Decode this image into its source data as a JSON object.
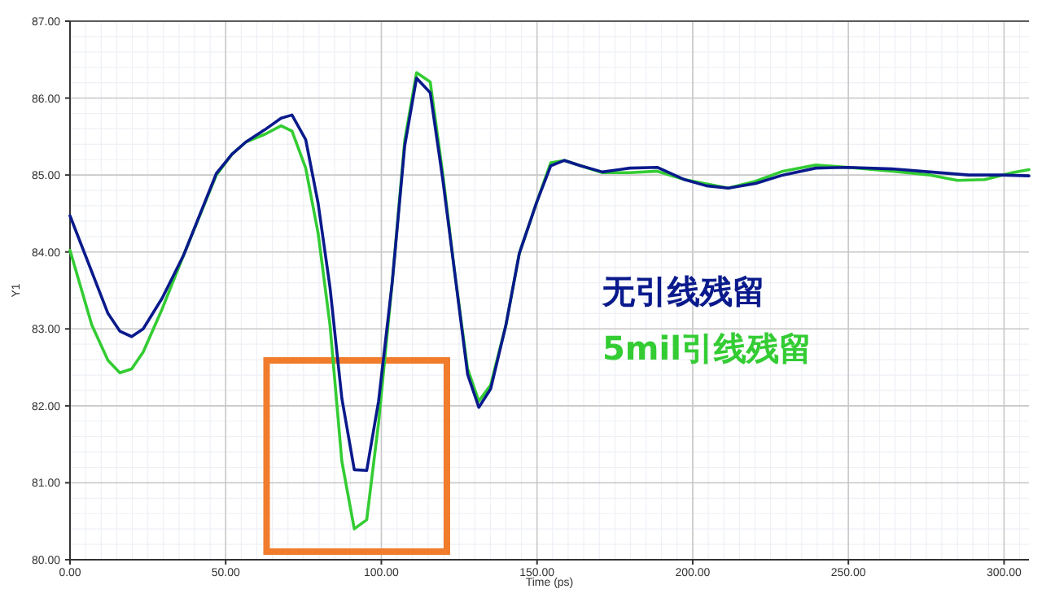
{
  "chart_data": {
    "type": "line",
    "xlabel": "Time (ps)",
    "ylabel": "Y1",
    "xlim": [
      0,
      308
    ],
    "ylim": [
      80,
      87
    ],
    "xticks": [
      {
        "value": 0,
        "label": "0.00"
      },
      {
        "value": 50,
        "label": "50.00"
      },
      {
        "value": 100,
        "label": "100.00"
      },
      {
        "value": 150,
        "label": "150.00"
      },
      {
        "value": 200,
        "label": "200.00"
      },
      {
        "value": 250,
        "label": "250.00"
      },
      {
        "value": 300,
        "label": "300.00"
      }
    ],
    "yticks": [
      {
        "value": 80,
        "label": "80.00"
      },
      {
        "value": 81,
        "label": "81.00"
      },
      {
        "value": 82,
        "label": "82.00"
      },
      {
        "value": 83,
        "label": "83.00"
      },
      {
        "value": 84,
        "label": "84.00"
      },
      {
        "value": 85,
        "label": "85.00"
      },
      {
        "value": 86,
        "label": "86.00"
      },
      {
        "value": 87,
        "label": "87.00"
      }
    ],
    "grid": true,
    "legend": "right",
    "marker": "none",
    "line_style": "solid",
    "series": [
      {
        "name": "无引线残留",
        "color": "#0a1a8c",
        "x": [
          0,
          12.2,
          16,
          19.8,
          23.5,
          29.6,
          36.5,
          47,
          52,
          56.5,
          62.6,
          67.8,
          71.3,
          75.7,
          79.7,
          83.5,
          87.3,
          91.3,
          95.3,
          99.1,
          103.5,
          107.5,
          111.3,
          115.7,
          119.7,
          123.5,
          127.7,
          131.3,
          135.1,
          140,
          144.3,
          150,
          154.4,
          158.8,
          164,
          171,
          179.8,
          188.6,
          197.4,
          204.4,
          211.4,
          220.2,
          229,
          239.5,
          250,
          264,
          276.3,
          288.6,
          299,
          308
        ],
        "values": [
          84.47,
          83.2,
          82.97,
          82.9,
          83.0,
          83.4,
          83.96,
          85.02,
          85.27,
          85.43,
          85.59,
          85.74,
          85.78,
          85.46,
          84.63,
          83.54,
          82.1,
          81.17,
          81.16,
          82.06,
          83.61,
          85.38,
          86.26,
          86.07,
          84.95,
          83.75,
          82.41,
          81.98,
          82.22,
          83.05,
          83.98,
          84.66,
          85.12,
          85.19,
          85.12,
          85.04,
          85.09,
          85.1,
          84.94,
          84.86,
          84.83,
          84.89,
          85.0,
          85.09,
          85.1,
          85.08,
          85.04,
          85.0,
          85.0,
          84.99
        ]
      },
      {
        "name": "5mil引线残留",
        "color": "#33cc33",
        "x": [
          0,
          7,
          12.2,
          16,
          19.8,
          23.5,
          29.6,
          36.5,
          47,
          52,
          56.5,
          62.6,
          67.8,
          71.3,
          75.7,
          79.7,
          83.5,
          87.3,
          91.3,
          95.3,
          99.1,
          103.5,
          107.5,
          111.3,
          115.7,
          119.7,
          123.5,
          127.7,
          131.3,
          135.1,
          140,
          144.3,
          150,
          154.4,
          158.8,
          164,
          171,
          179.8,
          188.6,
          197.4,
          211.4,
          220.2,
          229,
          239.5,
          250,
          264,
          276.3,
          285,
          293.8,
          302.6,
          308
        ],
        "values": [
          84.02,
          83.05,
          82.59,
          82.43,
          82.48,
          82.7,
          83.26,
          83.96,
          85.0,
          85.27,
          85.43,
          85.53,
          85.64,
          85.57,
          85.09,
          84.24,
          83.05,
          81.28,
          80.4,
          80.52,
          81.78,
          83.61,
          85.45,
          86.33,
          86.21,
          85.02,
          83.75,
          82.48,
          82.06,
          82.27,
          83.05,
          83.98,
          84.66,
          85.16,
          85.19,
          85.12,
          85.03,
          85.03,
          85.05,
          84.94,
          84.83,
          84.92,
          85.05,
          85.13,
          85.1,
          85.05,
          85.0,
          84.93,
          84.94,
          85.03,
          85.07
        ]
      }
    ]
  }
}
